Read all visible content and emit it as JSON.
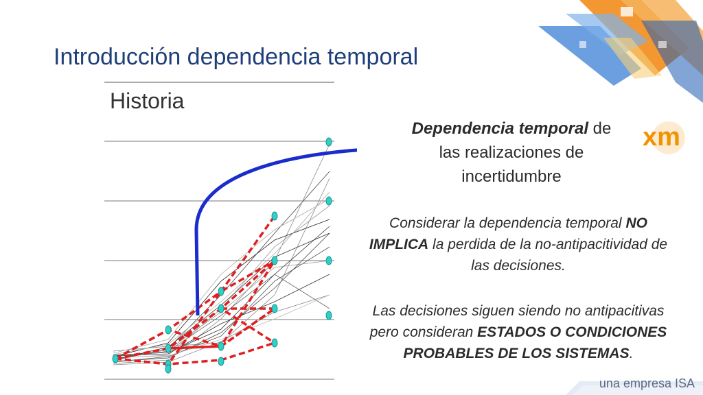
{
  "slide": {
    "title": "Introducción dependencia temporal",
    "history_label": "Historia"
  },
  "logo": {
    "text": "xm",
    "color": "#f39200"
  },
  "text_blocks": {
    "dependence": {
      "bold_italic": "Dependencia temporal",
      "rest_line1": " de",
      "line2": "las realizaciones de",
      "line3": "incertidumbre"
    },
    "note1": {
      "part1": "Considerar la dependencia temporal ",
      "bold1": "NO IMPLICA",
      "part2": " la perdida de la no-antipacitividad de las decisiones."
    },
    "note2": {
      "part1": "Las decisiones siguen siendo no antipacitivas pero consideran ",
      "bold1": "ESTADOS O CONDICIONES PROBABLES DE LOS SISTEMAS",
      "part2": "."
    }
  },
  "footer": {
    "text": "una empresa ISA"
  },
  "colors": {
    "title": "#1f3f7a",
    "red_path": "#e02020",
    "arrow": "#1a2ccc",
    "nodes": "#2fd0c8",
    "grey_lines": "#8a8a8a",
    "dark_lines": "#222222"
  }
}
